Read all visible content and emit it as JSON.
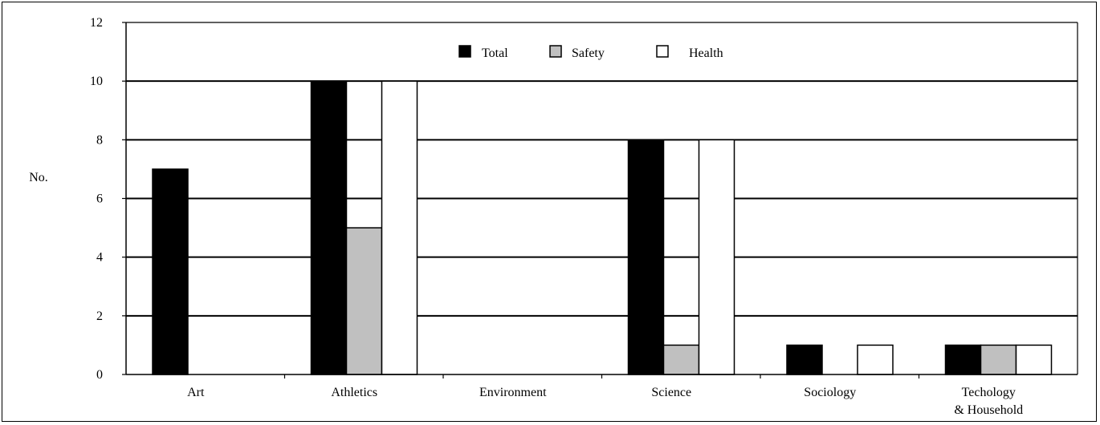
{
  "chart_data": {
    "type": "bar",
    "ylabel": "No.",
    "xlabel": "",
    "title": "",
    "ylim": [
      0,
      12
    ],
    "yticks": [
      0,
      2,
      4,
      6,
      8,
      10,
      12
    ],
    "grid": true,
    "legend_position": "top-center",
    "categories": [
      [
        "Art"
      ],
      [
        "Athletics"
      ],
      [
        "Environment"
      ],
      [
        "Science"
      ],
      [
        "Sociology"
      ],
      [
        "Techology",
        "& Household"
      ]
    ],
    "series": [
      {
        "name": "Total",
        "color": "#000000",
        "values": [
          7,
          10,
          0,
          8,
          1,
          1
        ]
      },
      {
        "name": "Safety",
        "color": "#c0c0c0",
        "values": [
          0,
          5,
          0,
          1,
          0,
          1
        ]
      },
      {
        "name": "Health",
        "color": "#ffffff",
        "values": [
          0,
          10,
          0,
          8,
          1,
          1
        ]
      }
    ]
  }
}
